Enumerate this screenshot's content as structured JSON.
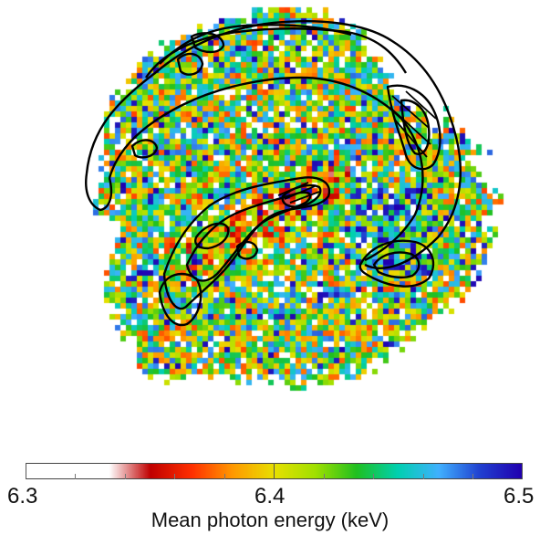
{
  "figure": {
    "colorbar": {
      "min_label": "6.3",
      "mid_label": "6.4",
      "max_label": "6.5",
      "title": "Mean photon energy (keV)",
      "range": [
        6.3,
        6.5
      ],
      "colors": [
        "#ffffff",
        "#ffffff",
        "#ffffff",
        "#c00000",
        "#ff3000",
        "#ff9900",
        "#e8e000",
        "#a0e000",
        "#20c020",
        "#00d0b0",
        "#40b0ff",
        "#2040d0",
        "#2000b0"
      ]
    },
    "map": {
      "type": "pixelated energy map with black intensity contours",
      "overlay": "contours"
    }
  }
}
